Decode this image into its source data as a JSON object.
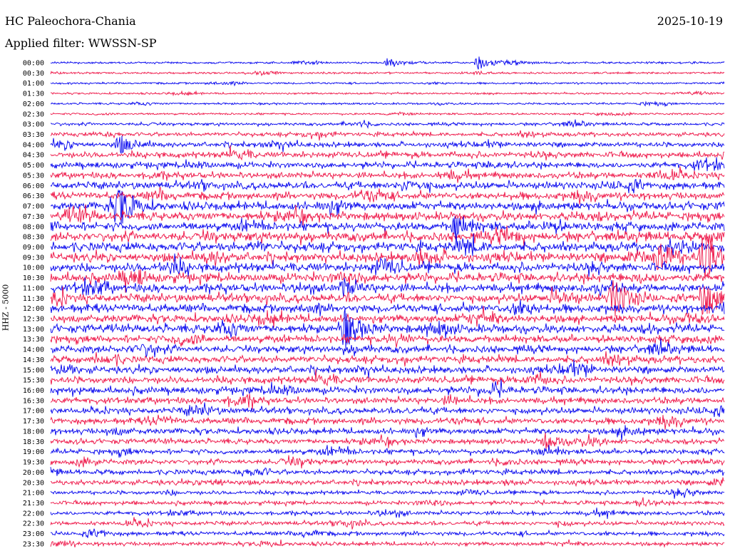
{
  "header": {
    "station": "HC Paleochora-Chania",
    "date": "2025-10-19",
    "filter": "Applied filter: WWSSN-SP",
    "channel_label": "HHZ - 5000"
  },
  "colors": {
    "odd_trace": "#0000ee",
    "even_trace": "#ee1144"
  },
  "chart_data": {
    "type": "line",
    "title": "HC Paleochora-Chania",
    "subtitle": "Applied filter: WWSSN-SP",
    "ylabel": "HHZ - 5000",
    "row_labels": [
      "00:00",
      "00:30",
      "01:00",
      "01:30",
      "02:00",
      "02:30",
      "03:00",
      "03:30",
      "04:00",
      "04:30",
      "05:00",
      "05:30",
      "06:00",
      "06:30",
      "07:00",
      "07:30",
      "08:00",
      "08:30",
      "09:00",
      "09:30",
      "10:00",
      "10:30",
      "11:00",
      "11:30",
      "12:00",
      "12:30",
      "13:00",
      "13:30",
      "14:00",
      "14:30",
      "15:00",
      "15:30",
      "16:00",
      "16:30",
      "17:00",
      "17:30",
      "18:00",
      "18:30",
      "19:00",
      "19:30",
      "20:00",
      "20:30",
      "21:00",
      "21:30",
      "22:00",
      "22:30",
      "23:00",
      "23:30"
    ],
    "noise_level": [
      1,
      1,
      1,
      1,
      1,
      1,
      2,
      3,
      4,
      5,
      5,
      5,
      6,
      6,
      7,
      7,
      7,
      8,
      8,
      8,
      8,
      8,
      7,
      7,
      7,
      7,
      7,
      6,
      6,
      6,
      6,
      6,
      6,
      5,
      5,
      5,
      5,
      4,
      4,
      4,
      4,
      4,
      3,
      3,
      3,
      3,
      3,
      3
    ],
    "events": [
      {
        "row": 0,
        "minute": 15,
        "amp": 3
      },
      {
        "row": 0,
        "minute": 19,
        "amp": 5
      },
      {
        "row": 8,
        "minute": 3,
        "amp": 6
      },
      {
        "row": 14,
        "minute": 3,
        "amp": 12
      },
      {
        "row": 16,
        "minute": 18,
        "amp": 7
      },
      {
        "row": 19,
        "minute": 29,
        "amp": 18
      },
      {
        "row": 19,
        "minute": 27,
        "amp": 12
      },
      {
        "row": 22,
        "minute": 13,
        "amp": 5
      },
      {
        "row": 23,
        "minute": 25,
        "amp": 14
      },
      {
        "row": 23,
        "minute": 29,
        "amp": 14
      },
      {
        "row": 26,
        "minute": 13,
        "amp": 14
      },
      {
        "row": 37,
        "minute": 22,
        "amp": 5
      }
    ]
  }
}
